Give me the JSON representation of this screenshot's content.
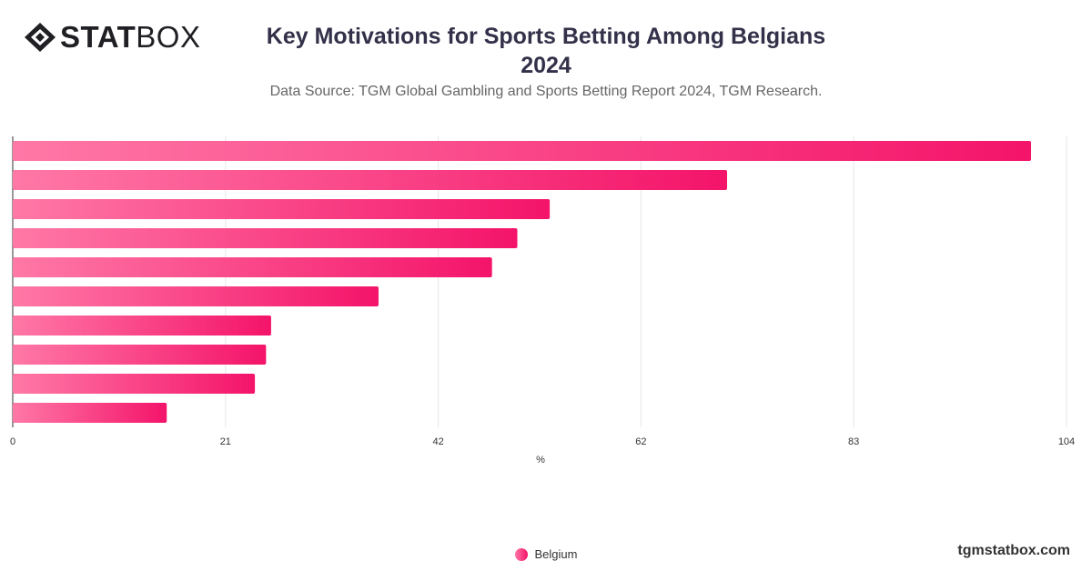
{
  "header": {
    "logo_bold": "STAT",
    "logo_light": "BOX",
    "title_line1": "Key Motivations for Sports Betting Among Belgians",
    "title_line2": "2024",
    "subtitle": "Data Source: TGM Global Gambling and Sports Betting Report 2024, TGM Research."
  },
  "footer": {
    "brand": "tgmstatbox.com"
  },
  "chart_data": {
    "type": "bar",
    "orientation": "horizontal",
    "xlabel": "%",
    "xticks": [
      "0",
      "21",
      "42",
      "62",
      "83",
      "104"
    ],
    "xlim": [
      0,
      104
    ],
    "grid": true,
    "legend_position": "bottom-center",
    "series": [
      {
        "name": "Belgium",
        "values": [
          100.5,
          70.5,
          53,
          49.8,
          47.3,
          36.1,
          25.5,
          25,
          23.9,
          15.2
        ]
      }
    ],
    "colors": {
      "bar_start": "#ff78a6",
      "bar_end": "#f4146a",
      "grid": "#e6e6e6",
      "axis": "#333333",
      "tick_text": "#333333"
    }
  }
}
